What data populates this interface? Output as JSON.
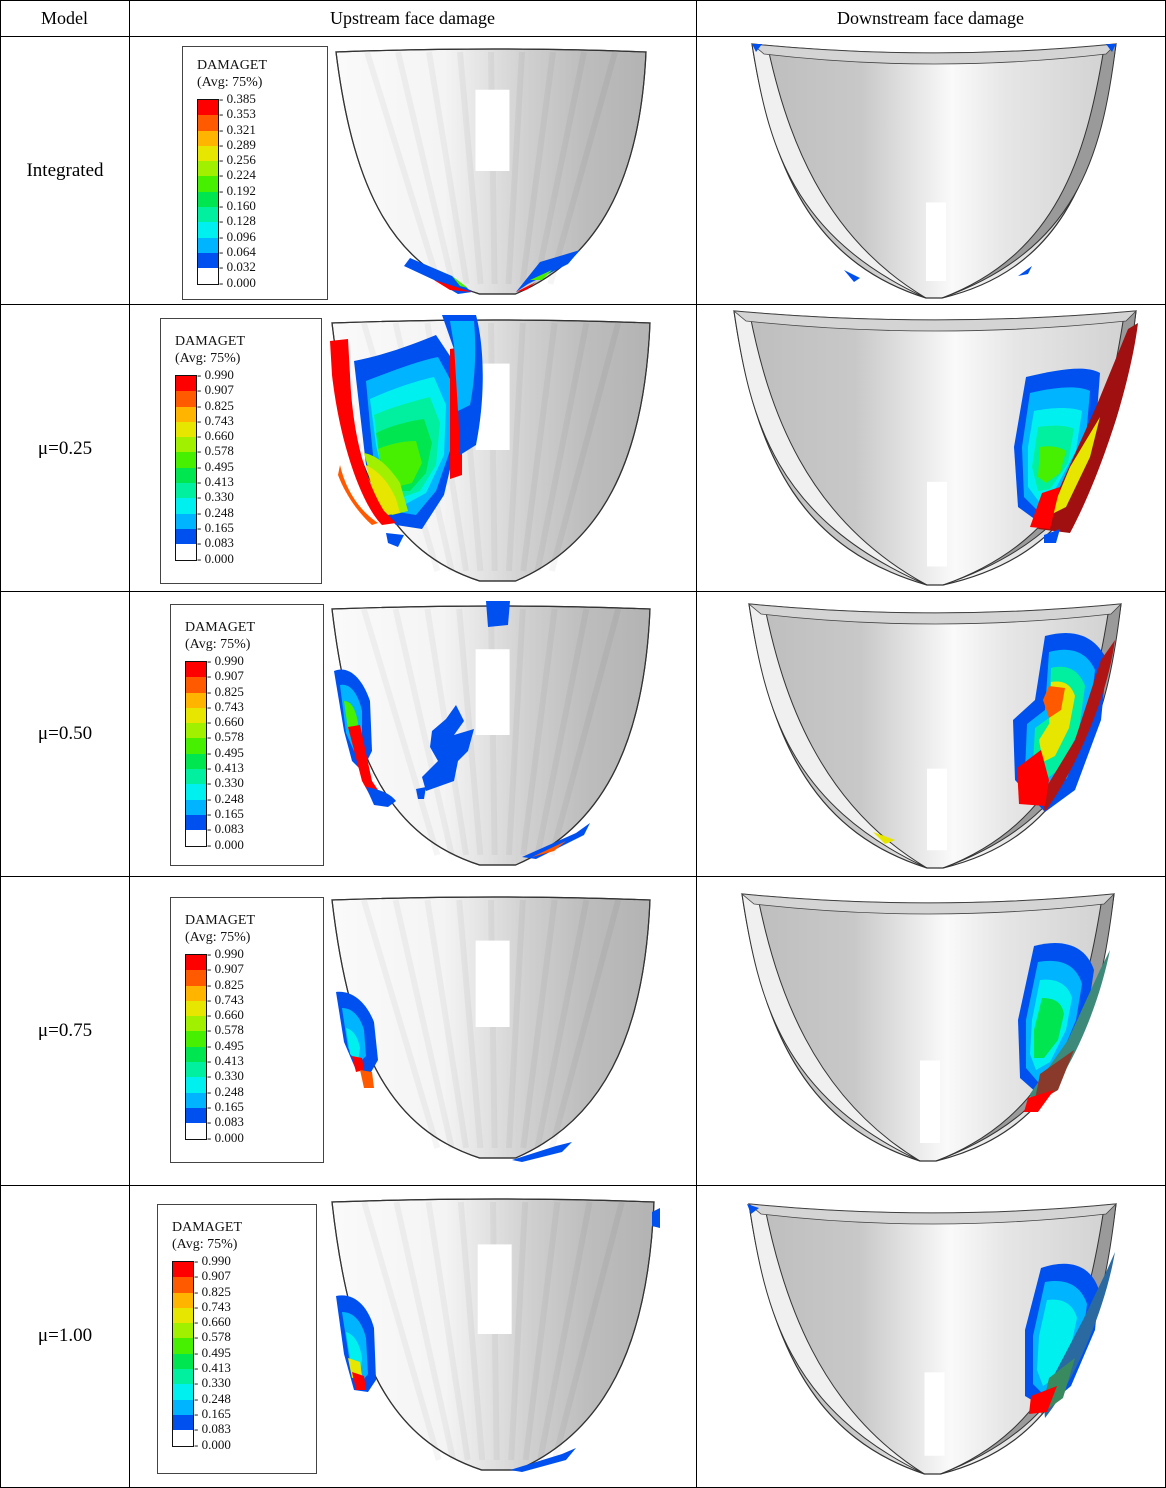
{
  "table": {
    "headers": [
      "Model",
      "Upstream face damage",
      "Downstream face damage"
    ],
    "rows": [
      {
        "label": "Integrated"
      },
      {
        "label": "μ=0.25"
      },
      {
        "label": "μ=0.50"
      },
      {
        "label": "μ=0.75"
      },
      {
        "label": "μ=1.00"
      }
    ]
  },
  "legend": {
    "title": "DAMAGET",
    "subtitle": "(Avg: 75%)",
    "colors": [
      "#ff0000",
      "#ff5a00",
      "#ffb400",
      "#e6e600",
      "#a0f000",
      "#46f000",
      "#00e650",
      "#00f0a0",
      "#00f0f0",
      "#00b4ff",
      "#0050f0",
      "#ffffff"
    ],
    "integrated_ticks": [
      "0.385",
      "0.353",
      "0.321",
      "0.289",
      "0.256",
      "0.224",
      "0.192",
      "0.160",
      "0.128",
      "0.096",
      "0.064",
      "0.032",
      "0.000"
    ],
    "damage_ticks": [
      "0.990",
      "0.907",
      "0.825",
      "0.743",
      "0.660",
      "0.578",
      "0.495",
      "0.413",
      "0.330",
      "0.248",
      "0.165",
      "0.083",
      "0.000"
    ]
  }
}
